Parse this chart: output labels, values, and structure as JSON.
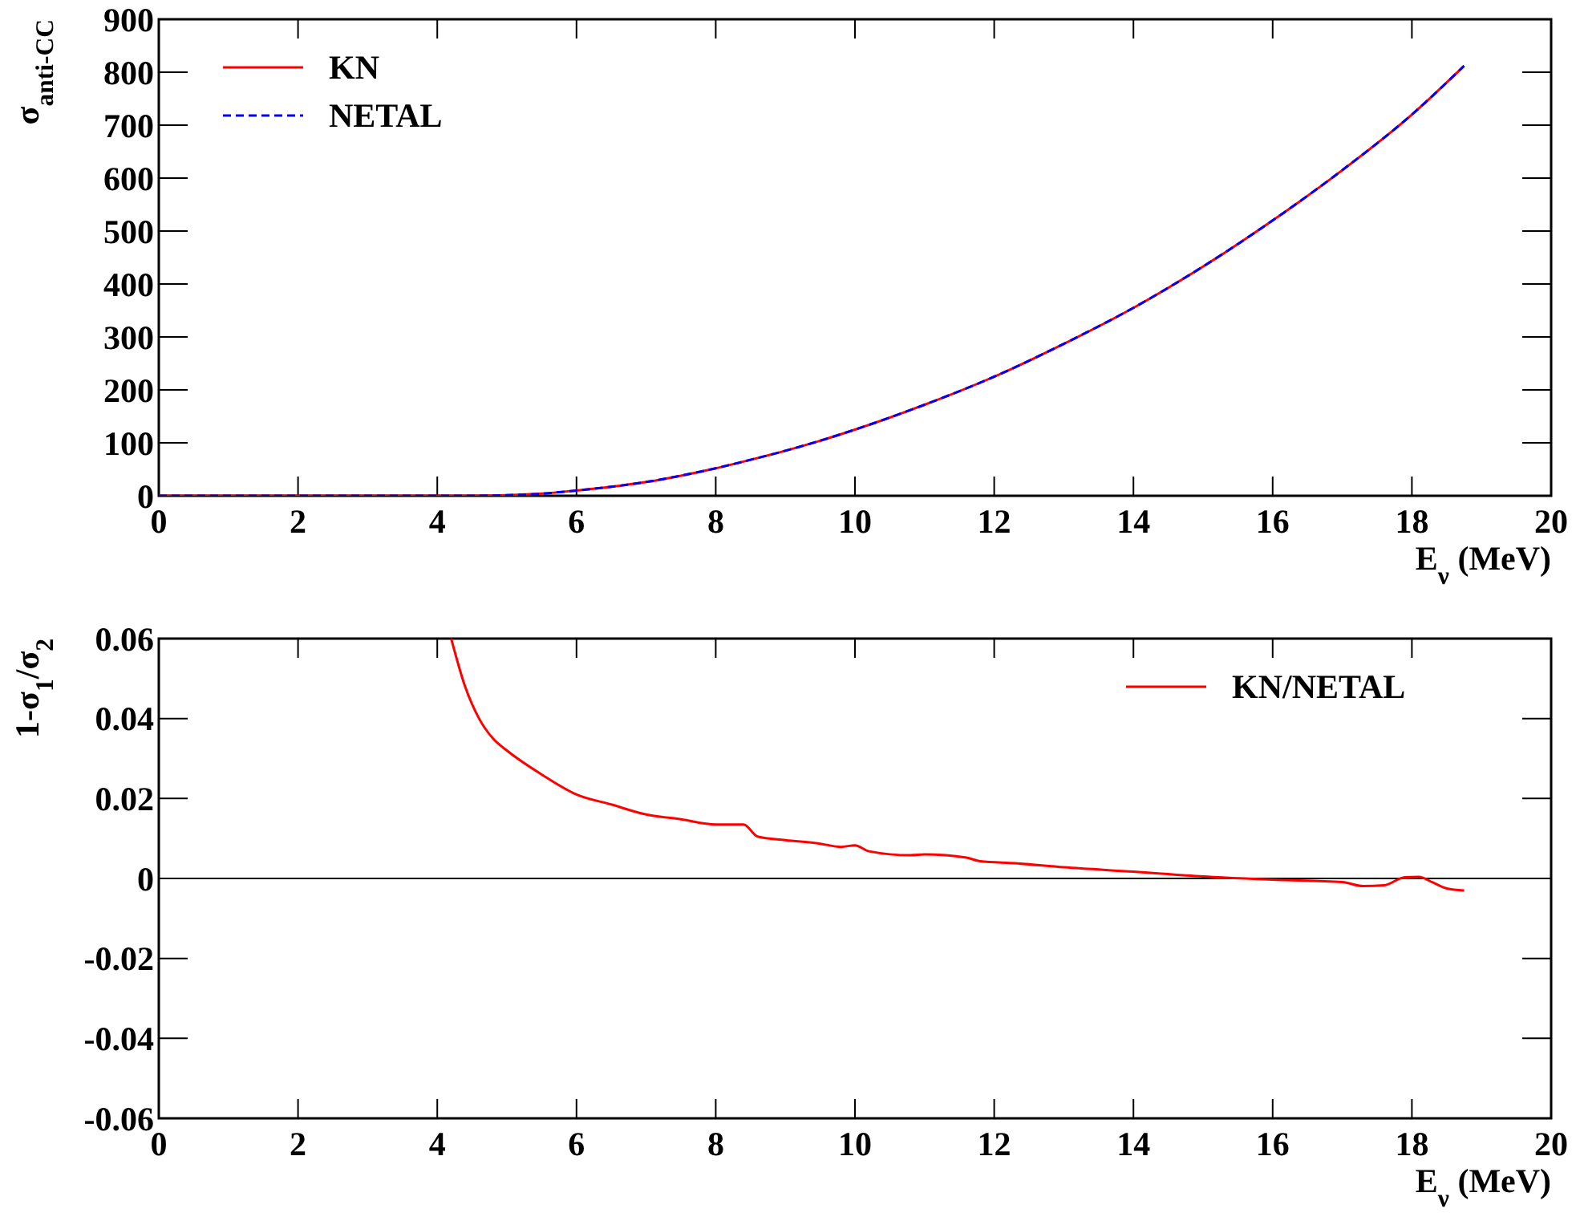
{
  "chart_data": [
    {
      "type": "line",
      "ylabel": "σ$_{anti-CC}$",
      "xlabel": "E$_{ν}$ (MeV)",
      "xlim": [
        0,
        20
      ],
      "xticks": [
        0,
        2,
        4,
        6,
        8,
        10,
        12,
        14,
        16,
        18,
        20
      ],
      "ylim": [
        0,
        900
      ],
      "yticks": [
        0,
        100,
        200,
        300,
        400,
        500,
        600,
        700,
        800,
        900
      ],
      "legend": "top left",
      "grid": false,
      "series": [
        {
          "name": "KN",
          "color": "#ff0000",
          "line_style": "solid",
          "x": [
            0,
            1,
            2,
            3,
            4,
            4.5,
            5,
            5.5,
            6,
            6.5,
            7,
            7.5,
            8,
            8.5,
            9,
            9.5,
            10,
            11,
            12,
            13,
            14,
            15,
            16,
            17,
            18,
            18.75
          ],
          "values": [
            0,
            0,
            0,
            0,
            0,
            0,
            1,
            4,
            10,
            17,
            26,
            38,
            52,
            68,
            85,
            104,
            125,
            172,
            225,
            287,
            355,
            433,
            520,
            615,
            720,
            812
          ]
        },
        {
          "name": "NETAL",
          "color": "#0000ff",
          "line_style": "dashed",
          "x": [
            0,
            1,
            2,
            3,
            4,
            4.5,
            5,
            5.5,
            6,
            6.5,
            7,
            7.5,
            8,
            8.5,
            9,
            9.5,
            10,
            11,
            12,
            13,
            14,
            15,
            16,
            17,
            18,
            18.75
          ],
          "values": [
            0,
            0,
            0,
            0,
            0,
            0,
            1,
            4,
            10,
            17,
            26,
            38,
            52,
            68,
            85,
            104,
            125,
            172,
            225,
            287,
            355,
            433,
            520,
            615,
            720,
            812
          ]
        }
      ]
    },
    {
      "type": "line",
      "ylabel": "1-σ$_{1}$/σ$_{2}$",
      "xlabel": "E$_{ν}$ (MeV)",
      "xlim": [
        0,
        20
      ],
      "xticks": [
        0,
        2,
        4,
        6,
        8,
        10,
        12,
        14,
        16,
        18,
        20
      ],
      "ylim": [
        -0.06,
        0.06
      ],
      "yticks": [
        -0.06,
        -0.04,
        -0.02,
        0,
        0.02,
        0.04,
        0.06
      ],
      "legend": "top right",
      "grid": false,
      "ref_lines": [
        {
          "axis": "y",
          "value": 0,
          "color": "#000000",
          "line_style": "solid"
        }
      ],
      "series": [
        {
          "name": "KN/NETAL",
          "color": "#ff0000",
          "line_style": "solid",
          "x": [
            4.2,
            4.4,
            4.6,
            4.8,
            5,
            5.5,
            6,
            6.5,
            7,
            7.5,
            8,
            8.4,
            8.6,
            9,
            9.5,
            9.8,
            10,
            10.2,
            10.8,
            11,
            11.6,
            11.8,
            12.3,
            13,
            14,
            15,
            16,
            17,
            17.3,
            17.6,
            17.9,
            18.1,
            18.3,
            18.5,
            18.75
          ],
          "values": [
            0.06,
            0.048,
            0.04,
            0.035,
            0.032,
            0.026,
            0.021,
            0.0185,
            0.016,
            0.0148,
            0.0135,
            0.0135,
            0.0105,
            0.0096,
            0.0087,
            0.0079,
            0.0083,
            0.0068,
            0.0058,
            0.006,
            0.0052,
            0.0043,
            0.0038,
            0.0028,
            0.0017,
            0.0005,
            -0.0003,
            -0.0009,
            -0.0019,
            -0.0017,
            0.0003,
            0.0004,
            -0.001,
            -0.0025,
            -0.003
          ]
        }
      ]
    }
  ]
}
